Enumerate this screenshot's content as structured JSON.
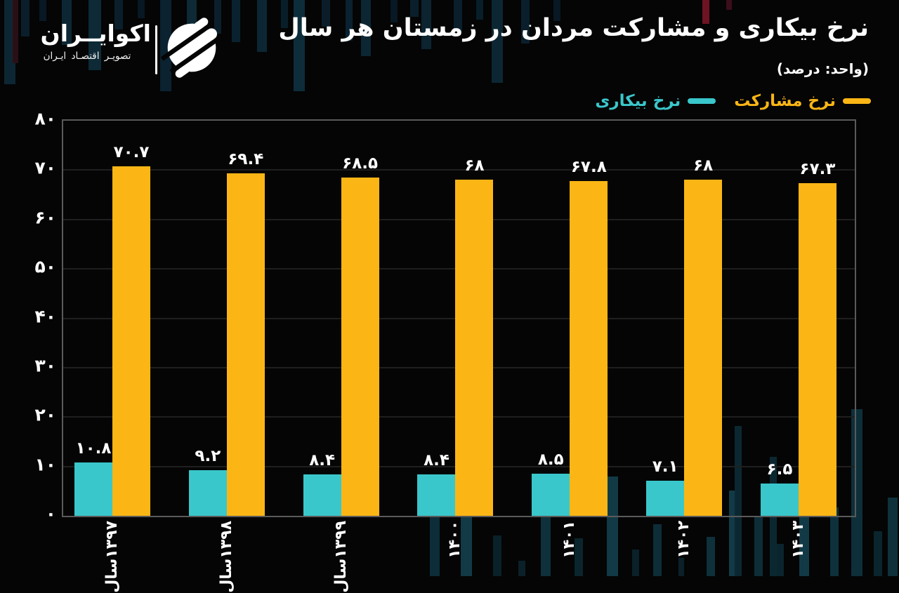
{
  "header": {
    "brand": {
      "name": "اکوایــران",
      "tagline": "تصویـر اقتصـاد ایـران"
    },
    "title": "نرخ بیکاری و مشارکت مردان در زمستان هر سال",
    "subtitle": "(واحد: درصد)"
  },
  "legend": [
    {
      "label": "نرخ مشارکت",
      "color": "#FBB615"
    },
    {
      "label": "نرخ بیکاری",
      "color": "#3AC7CB"
    }
  ],
  "colors": {
    "participation": "#FBB615",
    "unemployment": "#3AC7CB",
    "background": "#050505"
  },
  "chart_data": {
    "type": "bar",
    "title": "نرخ بیکاری و مشارکت مردان در زمستان هر سال",
    "subtitle": "(واحد: درصد)",
    "categories": [
      "۱۳۹۷سال",
      "۱۳۹۸سال",
      "۱۳۹۹سال",
      "۱۴۰۰",
      "۱۴۰۱",
      "۱۴۰۲",
      "۱۴۰۳"
    ],
    "series": [
      {
        "name": "نرخ مشارکت",
        "color": "#FBB615",
        "values": [
          70.7,
          69.4,
          68.5,
          68,
          67.8,
          68,
          67.3
        ],
        "labels": [
          "۷۰.۷",
          "۶۹.۴",
          "۶۸.۵",
          "۶۸",
          "۶۷.۸",
          "۶۸",
          "۶۷.۳"
        ]
      },
      {
        "name": "نرخ بیکاری",
        "color": "#3AC7CB",
        "values": [
          10.8,
          9.2,
          8.4,
          8.4,
          8.5,
          7.1,
          6.5
        ],
        "labels": [
          "۱۰.۸",
          "۹.۲",
          "۸.۴",
          "۸.۴",
          "۸.۵",
          "۷.۱",
          "۶.۵"
        ]
      }
    ],
    "ylim": [
      0,
      80
    ],
    "y_ticks": [
      "۸۰",
      "۷۰",
      "۶۰",
      "۵۰",
      "۴۰",
      "۳۰",
      "۲۰",
      "۱۰",
      "۰"
    ],
    "grid": "horizontal",
    "legend_position": "top-right"
  }
}
